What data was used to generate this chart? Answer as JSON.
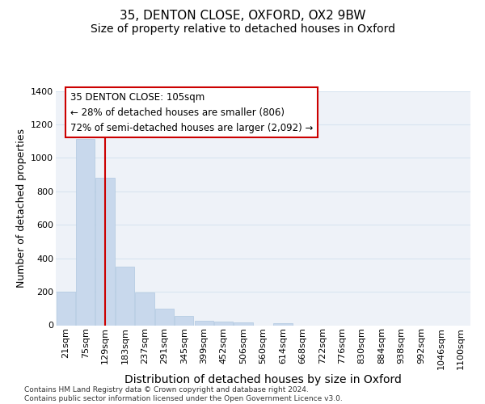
{
  "title": "35, DENTON CLOSE, OXFORD, OX2 9BW",
  "subtitle": "Size of property relative to detached houses in Oxford",
  "xlabel": "Distribution of detached houses by size in Oxford",
  "ylabel": "Number of detached properties",
  "bar_color": "#c8d8ec",
  "bar_edge_color": "#b0c8e0",
  "categories": [
    "21sqm",
    "75sqm",
    "129sqm",
    "183sqm",
    "237sqm",
    "291sqm",
    "345sqm",
    "399sqm",
    "452sqm",
    "506sqm",
    "560sqm",
    "614sqm",
    "668sqm",
    "722sqm",
    "776sqm",
    "830sqm",
    "884sqm",
    "938sqm",
    "992sqm",
    "1046sqm",
    "1100sqm"
  ],
  "values": [
    200,
    1115,
    880,
    350,
    195,
    100,
    55,
    25,
    20,
    15,
    0,
    12,
    0,
    0,
    0,
    0,
    0,
    0,
    0,
    0,
    0
  ],
  "ylim": [
    0,
    1400
  ],
  "yticks": [
    0,
    200,
    400,
    600,
    800,
    1000,
    1200,
    1400
  ],
  "vline_pos": 2.0,
  "vline_color": "#cc0000",
  "annotation_line1": "35 DENTON CLOSE: 105sqm",
  "annotation_line2": "← 28% of detached houses are smaller (806)",
  "annotation_line3": "72% of semi-detached houses are larger (2,092) →",
  "annotation_box_edgecolor": "#cc0000",
  "bg_color": "#eef2f8",
  "grid_color": "#d8e4f0",
  "footer": "Contains HM Land Registry data © Crown copyright and database right 2024.\nContains public sector information licensed under the Open Government Licence v3.0.",
  "title_fontsize": 11,
  "subtitle_fontsize": 10,
  "xlabel_fontsize": 10,
  "ylabel_fontsize": 9,
  "tick_fontsize": 8,
  "footer_fontsize": 6.5,
  "annotation_fontsize": 8.5
}
